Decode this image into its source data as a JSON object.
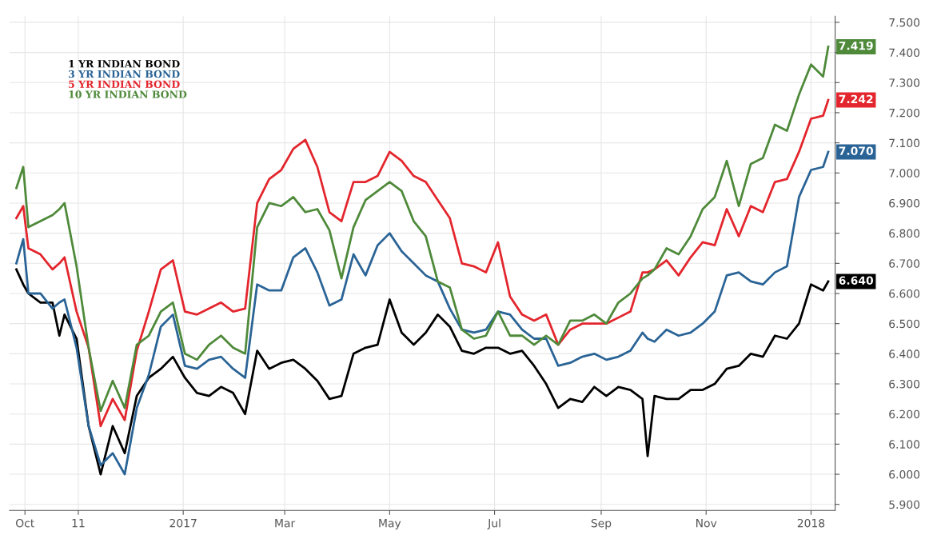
{
  "chart_data": {
    "type": "line",
    "x": [
      "2016-09-26",
      "2016-09-30",
      "2016-10-03",
      "2016-10-10",
      "2016-10-17",
      "2016-10-21",
      "2016-10-24",
      "2016-10-31",
      "2016-11-07",
      "2016-11-14",
      "2016-11-21",
      "2016-11-28",
      "2016-12-05",
      "2016-12-12",
      "2016-12-19",
      "2016-12-26",
      "2017-01-02",
      "2017-01-09",
      "2017-01-16",
      "2017-01-23",
      "2017-01-30",
      "2017-02-06",
      "2017-02-13",
      "2017-02-20",
      "2017-02-27",
      "2017-03-06",
      "2017-03-13",
      "2017-03-20",
      "2017-03-27",
      "2017-04-03",
      "2017-04-10",
      "2017-04-17",
      "2017-04-24",
      "2017-05-01",
      "2017-05-08",
      "2017-05-15",
      "2017-05-22",
      "2017-05-29",
      "2017-06-05",
      "2017-06-12",
      "2017-06-19",
      "2017-06-26",
      "2017-07-03",
      "2017-07-10",
      "2017-07-17",
      "2017-07-24",
      "2017-07-31",
      "2017-08-07",
      "2017-08-14",
      "2017-08-21",
      "2017-08-28",
      "2017-09-04",
      "2017-09-11",
      "2017-09-18",
      "2017-09-25",
      "2017-09-28",
      "2017-10-02",
      "2017-10-09",
      "2017-10-16",
      "2017-10-23",
      "2017-10-30",
      "2017-11-06",
      "2017-11-13",
      "2017-11-20",
      "2017-11-27",
      "2017-12-04",
      "2017-12-11",
      "2017-12-18",
      "2017-12-25",
      "2018-01-01",
      "2018-01-08",
      "2018-01-11"
    ],
    "series": [
      {
        "name": "1 YR INDIAN BOND",
        "color": "#000000",
        "values": [
          6.68,
          6.63,
          6.6,
          6.57,
          6.57,
          6.46,
          6.53,
          6.45,
          6.16,
          6.0,
          6.16,
          6.07,
          6.26,
          6.32,
          6.35,
          6.39,
          6.32,
          6.27,
          6.26,
          6.29,
          6.27,
          6.2,
          6.41,
          6.35,
          6.37,
          6.38,
          6.35,
          6.31,
          6.25,
          6.26,
          6.4,
          6.42,
          6.43,
          6.58,
          6.47,
          6.43,
          6.47,
          6.53,
          6.49,
          6.41,
          6.4,
          6.42,
          6.42,
          6.4,
          6.41,
          6.36,
          6.3,
          6.22,
          6.25,
          6.24,
          6.29,
          6.26,
          6.29,
          6.28,
          6.25,
          6.06,
          6.26,
          6.25,
          6.25,
          6.28,
          6.28,
          6.3,
          6.35,
          6.36,
          6.4,
          6.39,
          6.46,
          6.45,
          6.5,
          6.63,
          6.61,
          6.64
        ],
        "value_labels": [
          null,
          null,
          null,
          null,
          null,
          null,
          null,
          null,
          null,
          null,
          null,
          null,
          null,
          null,
          null,
          null,
          null,
          null,
          null,
          null,
          null,
          null,
          null,
          null,
          null,
          null,
          null,
          null,
          null,
          null,
          null,
          null,
          null,
          null,
          null,
          null,
          null,
          null,
          null,
          null,
          null,
          null,
          null,
          null,
          null,
          null,
          null,
          null,
          null,
          null,
          null,
          null,
          null,
          null,
          null,
          null,
          null,
          null,
          null,
          null,
          null,
          null,
          null,
          null,
          null,
          null,
          null,
          null,
          null,
          null,
          null,
          "6.640"
        ]
      },
      {
        "name": "3 YR INDIAN BOND",
        "color": "#2a6496",
        "values": [
          6.7,
          6.78,
          6.6,
          6.6,
          6.55,
          6.57,
          6.58,
          6.42,
          6.16,
          6.03,
          6.07,
          6.0,
          6.22,
          6.33,
          6.49,
          6.53,
          6.36,
          6.35,
          6.38,
          6.39,
          6.35,
          6.32,
          6.63,
          6.61,
          6.61,
          6.72,
          6.75,
          6.67,
          6.56,
          6.58,
          6.73,
          6.66,
          6.76,
          6.8,
          6.74,
          6.7,
          6.66,
          6.64,
          6.55,
          6.48,
          6.47,
          6.48,
          6.54,
          6.53,
          6.48,
          6.45,
          6.45,
          6.36,
          6.37,
          6.39,
          6.4,
          6.38,
          6.39,
          6.41,
          6.47,
          6.45,
          6.44,
          6.48,
          6.46,
          6.47,
          6.5,
          6.54,
          6.66,
          6.67,
          6.64,
          6.63,
          6.67,
          6.69,
          6.92,
          7.01,
          7.02,
          7.07
        ],
        "value_labels": [
          null,
          null,
          null,
          null,
          null,
          null,
          null,
          null,
          null,
          null,
          null,
          null,
          null,
          null,
          null,
          null,
          null,
          null,
          null,
          null,
          null,
          null,
          null,
          null,
          null,
          null,
          null,
          null,
          null,
          null,
          null,
          null,
          null,
          null,
          null,
          null,
          null,
          null,
          null,
          null,
          null,
          null,
          null,
          null,
          null,
          null,
          null,
          null,
          null,
          null,
          null,
          null,
          null,
          null,
          null,
          null,
          null,
          null,
          null,
          null,
          null,
          null,
          null,
          null,
          null,
          null,
          null,
          null,
          null,
          null,
          null,
          "7.070"
        ]
      },
      {
        "name": "5 YR INDIAN BOND",
        "color": "#e3262d",
        "values": [
          6.85,
          6.89,
          6.75,
          6.73,
          6.68,
          6.7,
          6.72,
          6.54,
          6.42,
          6.16,
          6.25,
          6.18,
          6.41,
          6.54,
          6.68,
          6.71,
          6.54,
          6.53,
          6.55,
          6.57,
          6.54,
          6.55,
          6.9,
          6.98,
          7.01,
          7.08,
          7.11,
          7.02,
          6.87,
          6.84,
          6.97,
          6.97,
          6.99,
          7.07,
          7.04,
          6.99,
          6.97,
          6.91,
          6.85,
          6.7,
          6.69,
          6.67,
          6.77,
          6.59,
          6.53,
          6.51,
          6.53,
          6.43,
          6.48,
          6.5,
          6.5,
          6.5,
          6.52,
          6.54,
          6.67,
          6.67,
          6.68,
          6.71,
          6.66,
          6.72,
          6.77,
          6.76,
          6.88,
          6.79,
          6.89,
          6.87,
          6.97,
          6.98,
          7.07,
          7.18,
          7.19,
          7.242
        ],
        "value_labels": [
          null,
          null,
          null,
          null,
          null,
          null,
          null,
          null,
          null,
          null,
          null,
          null,
          null,
          null,
          null,
          null,
          null,
          null,
          null,
          null,
          null,
          null,
          null,
          null,
          null,
          null,
          null,
          null,
          null,
          null,
          null,
          null,
          null,
          null,
          null,
          null,
          null,
          null,
          null,
          null,
          null,
          null,
          null,
          null,
          null,
          null,
          null,
          null,
          null,
          null,
          null,
          null,
          null,
          null,
          null,
          null,
          null,
          null,
          null,
          null,
          null,
          null,
          null,
          null,
          null,
          null,
          null,
          null,
          null,
          null,
          null,
          "7.242"
        ]
      },
      {
        "name": "10 YR INDIAN BOND",
        "color": "#4e8a3a",
        "values": [
          6.95,
          7.02,
          6.82,
          6.84,
          6.86,
          6.88,
          6.9,
          6.69,
          6.42,
          6.21,
          6.31,
          6.22,
          6.43,
          6.46,
          6.54,
          6.57,
          6.4,
          6.38,
          6.43,
          6.46,
          6.42,
          6.4,
          6.82,
          6.9,
          6.89,
          6.92,
          6.87,
          6.88,
          6.81,
          6.65,
          6.82,
          6.91,
          6.94,
          6.97,
          6.94,
          6.84,
          6.79,
          6.64,
          6.62,
          6.48,
          6.45,
          6.46,
          6.54,
          6.46,
          6.46,
          6.43,
          6.46,
          6.43,
          6.51,
          6.51,
          6.53,
          6.5,
          6.57,
          6.6,
          6.65,
          6.66,
          6.68,
          6.75,
          6.73,
          6.79,
          6.88,
          6.92,
          7.04,
          6.89,
          7.03,
          7.05,
          7.16,
          7.14,
          7.26,
          7.36,
          7.32,
          7.419
        ],
        "value_labels": [
          null,
          null,
          null,
          null,
          null,
          null,
          null,
          null,
          null,
          null,
          null,
          null,
          null,
          null,
          null,
          null,
          null,
          null,
          null,
          null,
          null,
          null,
          null,
          null,
          null,
          null,
          null,
          null,
          null,
          null,
          null,
          null,
          null,
          null,
          null,
          null,
          null,
          null,
          null,
          null,
          null,
          null,
          null,
          null,
          null,
          null,
          null,
          null,
          null,
          null,
          null,
          null,
          null,
          null,
          null,
          null,
          null,
          null,
          null,
          null,
          null,
          null,
          null,
          null,
          null,
          null,
          null,
          null,
          null,
          null,
          null,
          "7.419"
        ]
      }
    ],
    "xlim": [
      "2016-09-22",
      "2018-01-15"
    ],
    "xticks": [
      {
        "value": "2016-10-01",
        "label": "Oct"
      },
      {
        "value": "2016-11-01",
        "label": "11"
      },
      {
        "value": "2017-01-01",
        "label": "2017"
      },
      {
        "value": "2017-03-01",
        "label": "Mar"
      },
      {
        "value": "2017-05-01",
        "label": "May"
      },
      {
        "value": "2017-07-01",
        "label": "Jul"
      },
      {
        "value": "2017-09-01",
        "label": "Sep"
      },
      {
        "value": "2017-11-01",
        "label": "Nov"
      },
      {
        "value": "2018-01-01",
        "label": "2018"
      }
    ],
    "ylim": [
      5.88,
      7.52
    ],
    "yticks": [
      {
        "value": 5.9,
        "label": "5.900"
      },
      {
        "value": 6.0,
        "label": "6.000"
      },
      {
        "value": 6.1,
        "label": "6.100"
      },
      {
        "value": 6.2,
        "label": "6.200"
      },
      {
        "value": 6.3,
        "label": "6.300"
      },
      {
        "value": 6.4,
        "label": "6.400"
      },
      {
        "value": 6.5,
        "label": "6.500"
      },
      {
        "value": 6.6,
        "label": "6.600"
      },
      {
        "value": 6.7,
        "label": "6.700"
      },
      {
        "value": 6.8,
        "label": "6.800"
      },
      {
        "value": 6.9,
        "label": "6.900"
      },
      {
        "value": 7.0,
        "label": "7.000"
      },
      {
        "value": 7.1,
        "label": "7.100"
      },
      {
        "value": 7.2,
        "label": "7.200"
      },
      {
        "value": 7.3,
        "label": "7.300"
      },
      {
        "value": 7.4,
        "label": "7.400"
      },
      {
        "value": 7.5,
        "label": "7.500"
      }
    ],
    "grid": true,
    "legend": "top left",
    "marker": "none",
    "line_style": "solid"
  }
}
